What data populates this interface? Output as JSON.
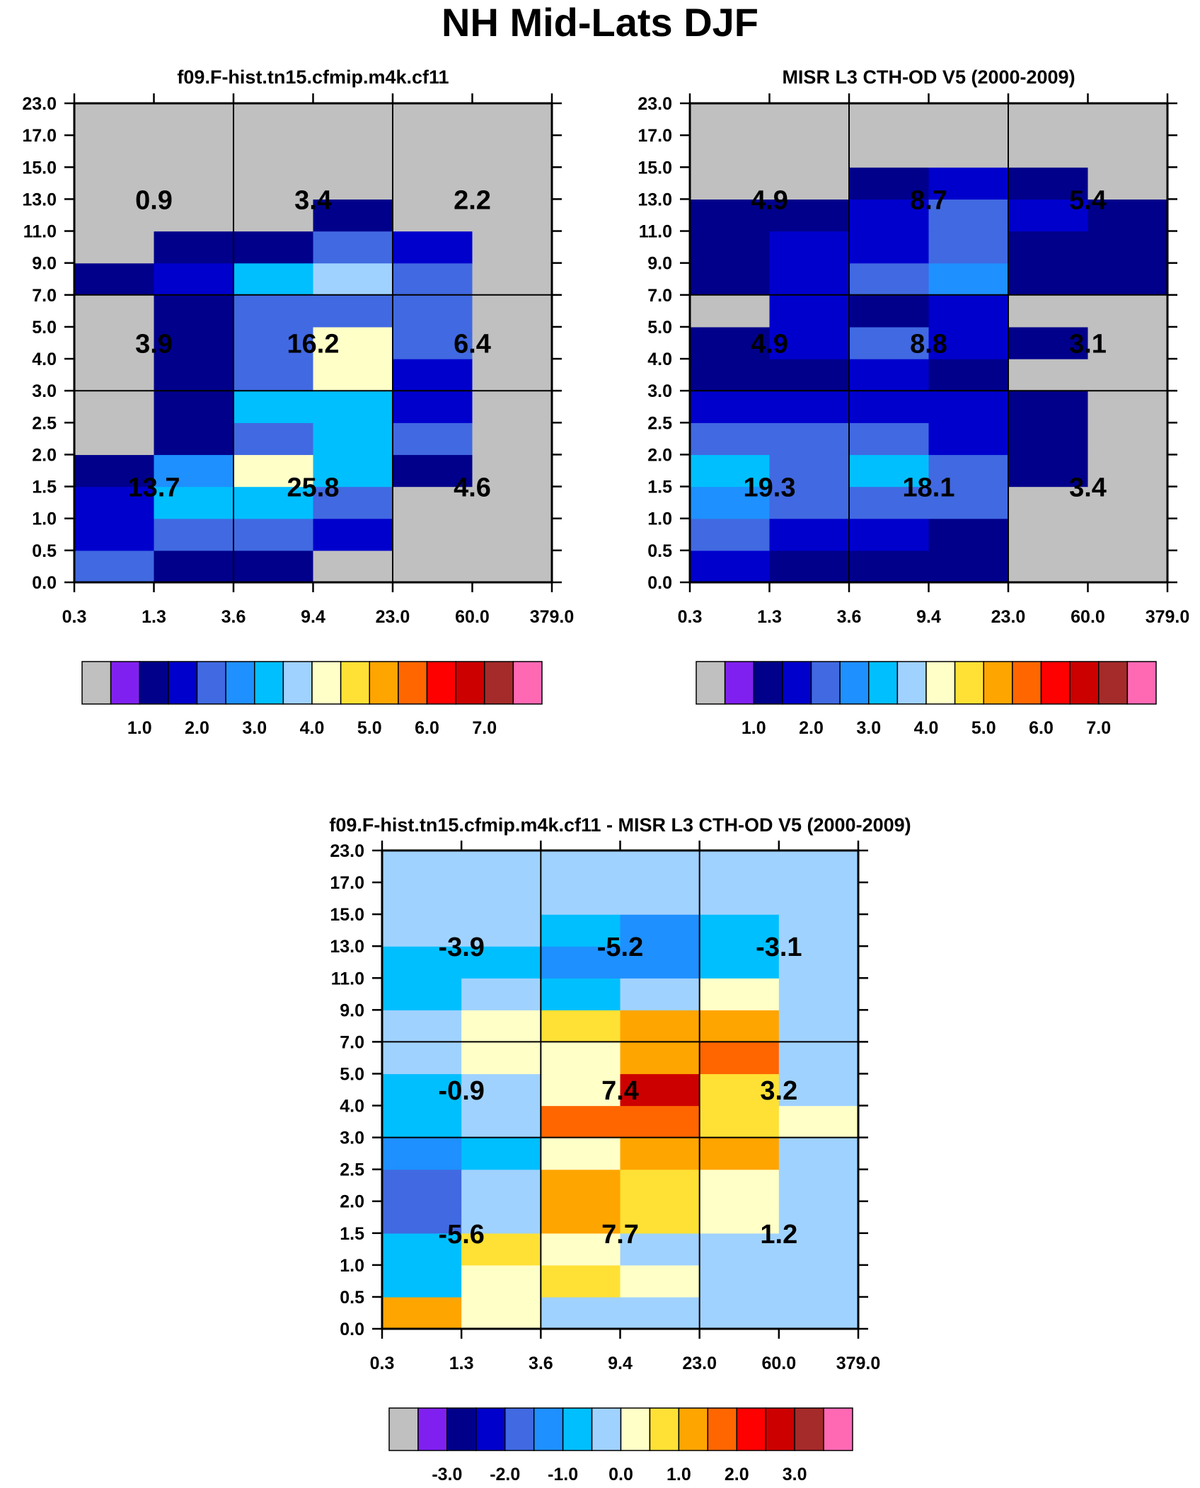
{
  "title": "NH Mid-Lats DJF",
  "axes": {
    "x_ticks": [
      "0.3",
      "1.3",
      "3.6",
      "9.4",
      "23.0",
      "60.0",
      "379.0"
    ],
    "y_ticks": [
      "0.0",
      "0.5",
      "1.0",
      "1.5",
      "2.0",
      "2.5",
      "3.0",
      "4.0",
      "5.0",
      "7.0",
      "9.0",
      "11.0",
      "13.0",
      "15.0",
      "17.0",
      "23.0"
    ]
  },
  "palette": [
    "#c0c0c0",
    "#8020f0",
    "#00008b",
    "#0000cd",
    "#4169e1",
    "#1e90ff",
    "#00bfff",
    "#a0d2ff",
    "#ffffc8",
    "#ffe135",
    "#ffa500",
    "#ff6600",
    "#ff0000",
    "#cd0000",
    "#a52a2a",
    "#ff69b4"
  ],
  "chart_data": [
    {
      "type": "heatmap",
      "title": "f09.F-hist.tn15.cfmip.m4k.cf11",
      "colorbar_labels": [
        "1.0",
        "2.0",
        "3.0",
        "4.0",
        "5.0",
        "6.0",
        "7.0"
      ],
      "colorbar_levels": [
        0.5,
        1,
        1.5,
        2,
        2.5,
        3,
        3.5,
        4,
        4.5,
        5,
        5.5,
        6,
        6.5,
        7,
        7.5
      ],
      "values_rows_bottom_to_top": [
        [
          2,
          1,
          1,
          0.2,
          0.2,
          0.2
        ],
        [
          1.5,
          2,
          2,
          1.5,
          0.2,
          0.2
        ],
        [
          1.5,
          3,
          3,
          2,
          0.2,
          0.2
        ],
        [
          1,
          2.5,
          4,
          3,
          1,
          0.2
        ],
        [
          0.2,
          1,
          2,
          3,
          2,
          0.2
        ],
        [
          0.2,
          1,
          3,
          3,
          1.5,
          0.2
        ],
        [
          0.2,
          1,
          2,
          4,
          1.5,
          0.2
        ],
        [
          0.2,
          1,
          2,
          4,
          2,
          0.2
        ],
        [
          0.2,
          1,
          2,
          2,
          2,
          0.2
        ],
        [
          1,
          1.5,
          3,
          3.5,
          2,
          0.2
        ],
        [
          0.2,
          1,
          1,
          2,
          1.5,
          0.2
        ],
        [
          0.2,
          0.2,
          0.2,
          1,
          0.2,
          0.2
        ],
        [
          0.2,
          0.2,
          0.2,
          0.2,
          0.2,
          0.2
        ],
        [
          0.2,
          0.2,
          0.2,
          0.2,
          0.2,
          0.2
        ],
        [
          0.2,
          0.2,
          0.2,
          0.2,
          0.2,
          0.2
        ]
      ],
      "box_sums": [
        [
          "13.7",
          "25.8",
          "4.6"
        ],
        [
          "3.9",
          "16.2",
          "6.4"
        ],
        [
          "0.9",
          "3.4",
          "2.2"
        ]
      ]
    },
    {
      "type": "heatmap",
      "title": "MISR L3 CTH-OD V5 (2000-2009)",
      "colorbar_labels": [
        "1.0",
        "2.0",
        "3.0",
        "4.0",
        "5.0",
        "6.0",
        "7.0"
      ],
      "colorbar_levels": [
        0.5,
        1,
        1.5,
        2,
        2.5,
        3,
        3.5,
        4,
        4.5,
        5,
        5.5,
        6,
        6.5,
        7,
        7.5
      ],
      "values_rows_bottom_to_top": [
        [
          1.5,
          1,
          1,
          1,
          0.2,
          0.2
        ],
        [
          2,
          1.5,
          1.5,
          1,
          0.2,
          0.2
        ],
        [
          2.5,
          2,
          2,
          2,
          0.2,
          0.2
        ],
        [
          3,
          2,
          3,
          2,
          1,
          0.2
        ],
        [
          2,
          2,
          2,
          1.5,
          1,
          0.2
        ],
        [
          1.5,
          1.5,
          1.5,
          1.5,
          1,
          0.2
        ],
        [
          1,
          1,
          1.5,
          1,
          0.2,
          0.2
        ],
        [
          1,
          1.5,
          2,
          1.5,
          1,
          0.2
        ],
        [
          0.2,
          1.5,
          1,
          1.5,
          0.2,
          0.2
        ],
        [
          1,
          1.5,
          2,
          2.5,
          1,
          1
        ],
        [
          1,
          1.5,
          1.5,
          2,
          1,
          1
        ],
        [
          1,
          1,
          1.5,
          2,
          1.5,
          1
        ],
        [
          0.2,
          0.2,
          1,
          1.5,
          1,
          0.2
        ],
        [
          0.2,
          0.2,
          0.2,
          0.2,
          0.2,
          0.2
        ],
        [
          0.2,
          0.2,
          0.2,
          0.2,
          0.2,
          0.2
        ]
      ],
      "box_sums": [
        [
          "19.3",
          "18.1",
          "3.4"
        ],
        [
          "4.9",
          "8.8",
          "3.1"
        ],
        [
          "4.9",
          "8.7",
          "5.4"
        ]
      ]
    },
    {
      "type": "heatmap",
      "title": "f09.F-hist.tn15.cfmip.m4k.cf11 - MISR L3 CTH-OD V5 (2000-2009)",
      "colorbar_labels": [
        "-3.0",
        "-2.0",
        "-1.0",
        "0.0",
        "1.0",
        "2.0",
        "3.0"
      ],
      "colorbar_levels": [
        -3.5,
        -3,
        -2.5,
        -2,
        -1.5,
        -1,
        -0.5,
        0,
        0.5,
        1,
        1.5,
        2,
        2.5,
        3,
        3.5
      ],
      "values_rows_bottom_to_top": [
        [
          1.2,
          0.2,
          -0.2,
          -0.2,
          -0.2,
          -0.2
        ],
        [
          -0.7,
          0.2,
          0.7,
          0.2,
          -0.2,
          -0.2
        ],
        [
          -0.7,
          0.7,
          0.2,
          -0.2,
          -0.2,
          -0.2
        ],
        [
          -1.7,
          -0.2,
          1.2,
          0.7,
          0.2,
          -0.2
        ],
        [
          -1.7,
          -0.2,
          1.2,
          0.7,
          0.2,
          -0.2
        ],
        [
          -1.2,
          -0.7,
          0.2,
          1.2,
          1.2,
          -0.2
        ],
        [
          -0.7,
          -0.2,
          1.7,
          1.7,
          0.7,
          0.2
        ],
        [
          -0.7,
          -0.2,
          0.2,
          2.7,
          0.7,
          -0.2
        ],
        [
          -0.2,
          0.2,
          0.2,
          1.2,
          1.7,
          -0.2
        ],
        [
          -0.2,
          0.2,
          0.7,
          1.2,
          1.2,
          -0.2
        ],
        [
          -0.7,
          -0.2,
          -0.7,
          -0.2,
          0.2,
          -0.2
        ],
        [
          -0.7,
          -0.7,
          -1.2,
          -1.2,
          -0.7,
          -0.2
        ],
        [
          -0.2,
          -0.2,
          -0.7,
          -1.2,
          -0.7,
          -0.2
        ],
        [
          -0.2,
          -0.2,
          -0.2,
          -0.2,
          -0.2,
          -0.2
        ],
        [
          -0.2,
          -0.2,
          -0.2,
          -0.2,
          -0.2,
          -0.2
        ]
      ],
      "box_sums": [
        [
          "-5.6",
          "7.7",
          "1.2"
        ],
        [
          "-0.9",
          "7.4",
          "3.2"
        ],
        [
          "-3.9",
          "-5.2",
          "-3.1"
        ]
      ]
    }
  ]
}
